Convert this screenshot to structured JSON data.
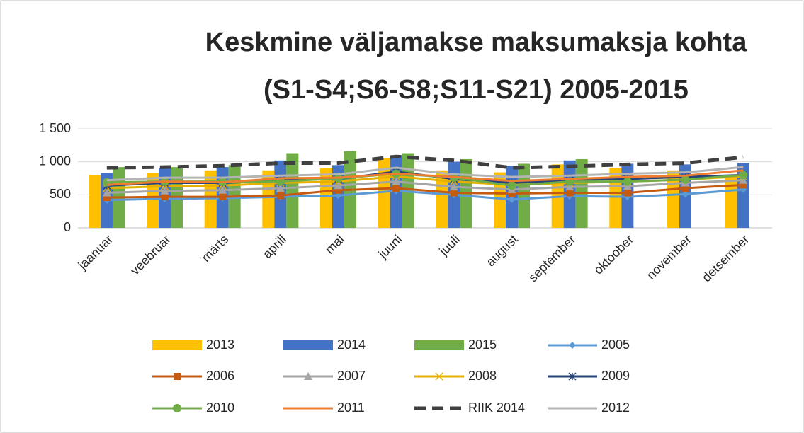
{
  "chart_data": {
    "type": "bar-line",
    "title": [
      "Keskmine väljamakse maksumaksja kohta",
      "(S1-S4;S6-S8;S11-S21) 2005-2015"
    ],
    "categories": [
      "jaanuar",
      "veebruar",
      "märts",
      "aprill",
      "mai",
      "juuni",
      "juuli",
      "august",
      "september",
      "oktoober",
      "november",
      "detsember"
    ],
    "ylim": [
      0,
      1500
    ],
    "yticks": [
      0,
      500,
      {
        "value": 1000,
        "label": "1 000"
      },
      {
        "value": 1500,
        "label": "1 500"
      }
    ],
    "grid": true,
    "legend": "bottom",
    "series": [
      {
        "name": "2013",
        "kind": "bar",
        "color": "#FFC000",
        "values": [
          800,
          830,
          870,
          870,
          900,
          1050,
          870,
          840,
          960,
          910,
          870,
          770
        ]
      },
      {
        "name": "2014",
        "kind": "bar",
        "color": "#4472C4",
        "values": [
          830,
          900,
          920,
          1020,
          950,
          1100,
          1000,
          940,
          1020,
          970,
          960,
          980
        ]
      },
      {
        "name": "2015",
        "kind": "bar",
        "color": "#70AD47",
        "values": [
          920,
          920,
          950,
          1130,
          1160,
          1130,
          1040,
          970,
          1040,
          null,
          null,
          null
        ]
      },
      {
        "name": "2005",
        "kind": "line",
        "marker": "diamond",
        "color": "#5B9BD5",
        "values": [
          420,
          440,
          450,
          470,
          490,
          560,
          500,
          430,
          480,
          470,
          510,
          580
        ]
      },
      {
        "name": "2006",
        "kind": "line",
        "marker": "square",
        "color": "#C55A11",
        "values": [
          460,
          470,
          470,
          490,
          570,
          600,
          530,
          520,
          530,
          530,
          600,
          650
        ]
      },
      {
        "name": "2007",
        "kind": "line",
        "marker": "triangle",
        "color": "#A5A5A5",
        "values": [
          530,
          560,
          570,
          600,
          640,
          700,
          620,
          580,
          620,
          630,
          680,
          720
        ]
      },
      {
        "name": "2008",
        "kind": "line",
        "marker": "x",
        "color": "#E6B000",
        "values": [
          600,
          630,
          640,
          680,
          700,
          780,
          700,
          650,
          680,
          700,
          730,
          780
        ]
      },
      {
        "name": "2009",
        "kind": "line",
        "marker": "star",
        "color": "#264478",
        "values": [
          640,
          680,
          680,
          720,
          740,
          850,
          740,
          680,
          720,
          740,
          770,
          800
        ]
      },
      {
        "name": "2010",
        "kind": "line",
        "marker": "circle",
        "color": "#70AD47",
        "values": [
          690,
          700,
          700,
          700,
          750,
          820,
          760,
          640,
          700,
          700,
          730,
          800
        ]
      },
      {
        "name": "2011",
        "kind": "line",
        "color": "#ED7D31",
        "values": [
          650,
          700,
          690,
          750,
          760,
          820,
          770,
          710,
          740,
          770,
          790,
          870
        ]
      },
      {
        "name": "RIIK 2014",
        "kind": "line",
        "dashed": true,
        "color": "#404040",
        "values": [
          910,
          920,
          940,
          980,
          980,
          1080,
          1020,
          910,
          930,
          960,
          980,
          1070
        ]
      },
      {
        "name": "2012",
        "kind": "line",
        "color": "#B4B4B4",
        "values": [
          720,
          760,
          760,
          790,
          810,
          910,
          810,
          770,
          790,
          820,
          840,
          920
        ]
      }
    ]
  }
}
